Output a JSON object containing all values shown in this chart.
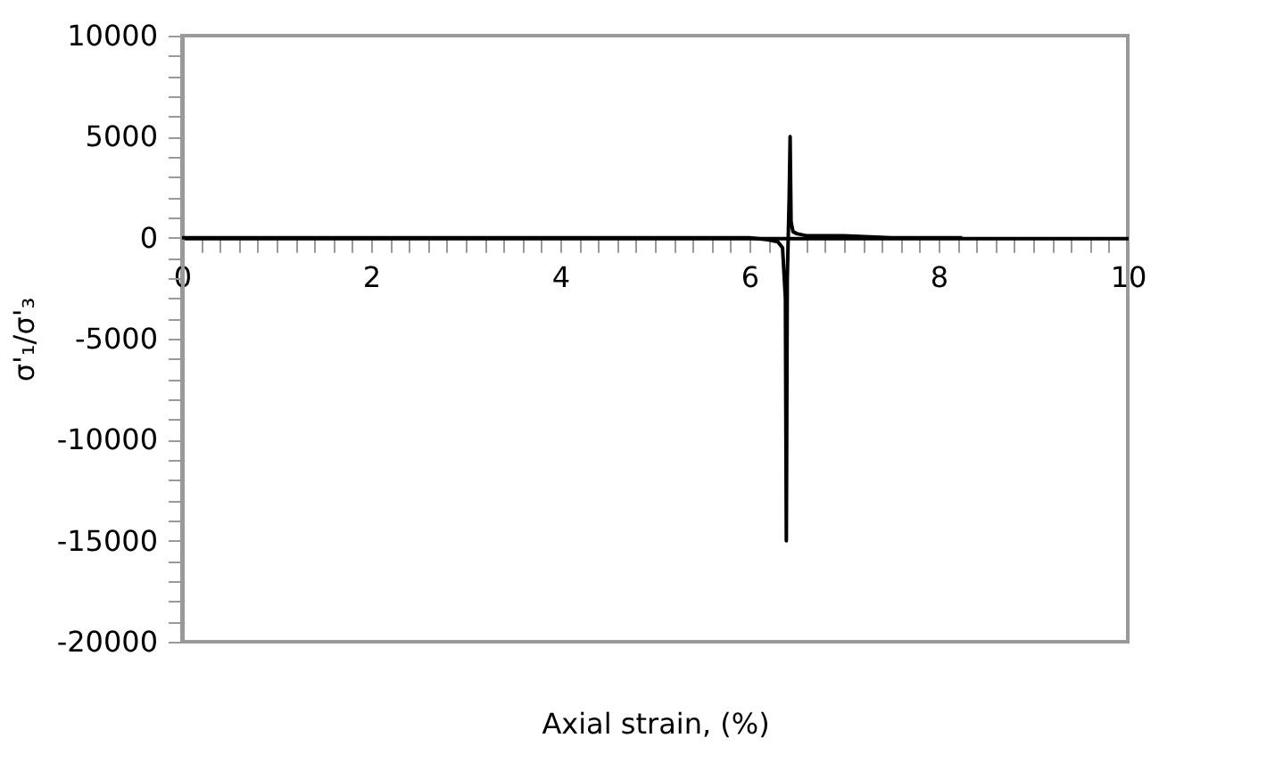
{
  "chart_data": {
    "type": "line",
    "xlabel": "Axial strain, (%)",
    "ylabel": "σ'₁/σ'₃",
    "x": [
      0,
      1,
      2,
      3,
      4,
      5,
      5.6,
      6.0,
      6.2,
      6.3,
      6.35,
      6.38,
      6.39,
      6.4,
      6.42,
      6.43,
      6.44,
      6.46,
      6.5,
      6.6,
      6.8,
      7.0,
      7.5,
      8.0,
      8.25
    ],
    "series": [
      {
        "color": "#000000",
        "values": [
          0,
          0,
          0,
          0,
          0,
          0,
          0,
          0,
          -100,
          -200,
          -500,
          -3000,
          -15000,
          -2000,
          2000,
          5000,
          800,
          300,
          200,
          100,
          100,
          100,
          0,
          0,
          0
        ]
      }
    ],
    "xlim": [
      0,
      10
    ],
    "ylim": [
      -20000,
      10000
    ],
    "xticks": [
      0,
      {
        "value": 0.2,
        "label": null
      },
      {
        "value": 0.4,
        "label": null
      },
      {
        "value": 0.6,
        "label": null
      },
      {
        "value": 0.8,
        "label": null
      },
      {
        "value": 1,
        "label": null
      },
      {
        "value": 1.2,
        "label": null
      },
      {
        "value": 1.4,
        "label": null
      },
      {
        "value": 1.6,
        "label": null
      },
      {
        "value": 1.8,
        "label": null
      },
      2,
      {
        "value": 2.2,
        "label": null
      },
      {
        "value": 2.4,
        "label": null
      },
      {
        "value": 2.6,
        "label": null
      },
      {
        "value": 2.8,
        "label": null
      },
      {
        "value": 3,
        "label": null
      },
      {
        "value": 3.2,
        "label": null
      },
      {
        "value": 3.4,
        "label": null
      },
      {
        "value": 3.6,
        "label": null
      },
      {
        "value": 3.8,
        "label": null
      },
      4,
      {
        "value": 4.2,
        "label": null
      },
      {
        "value": 4.4,
        "label": null
      },
      {
        "value": 4.6,
        "label": null
      },
      {
        "value": 4.8,
        "label": null
      },
      {
        "value": 5,
        "label": null
      },
      {
        "value": 5.2,
        "label": null
      },
      {
        "value": 5.4,
        "label": null
      },
      {
        "value": 5.6,
        "label": null
      },
      {
        "value": 5.8,
        "label": null
      },
      6,
      {
        "value": 6.2,
        "label": null
      },
      {
        "value": 6.4,
        "label": null
      },
      {
        "value": 6.6,
        "label": null
      },
      {
        "value": 6.8,
        "label": null
      },
      {
        "value": 7,
        "label": null
      },
      {
        "value": 7.2,
        "label": null
      },
      {
        "value": 7.4,
        "label": null
      },
      {
        "value": 7.6,
        "label": null
      },
      {
        "value": 7.8,
        "label": null
      },
      8,
      {
        "value": 8.2,
        "label": null
      },
      {
        "value": 8.4,
        "label": null
      },
      {
        "value": 8.6,
        "label": null
      },
      {
        "value": 8.8,
        "label": null
      },
      {
        "value": 9,
        "label": null
      },
      {
        "value": 9.2,
        "label": null
      },
      {
        "value": 9.4,
        "label": null
      },
      {
        "value": 9.6,
        "label": null
      },
      {
        "value": 9.8,
        "label": null
      },
      10
    ],
    "yticks": [
      -20000,
      {
        "value": -19000,
        "label": null
      },
      {
        "value": -18000,
        "label": null
      },
      {
        "value": -17000,
        "label": null
      },
      {
        "value": -16000,
        "label": null
      },
      -15000,
      {
        "value": -14000,
        "label": null
      },
      {
        "value": -13000,
        "label": null
      },
      {
        "value": -12000,
        "label": null
      },
      {
        "value": -11000,
        "label": null
      },
      -10000,
      {
        "value": -9000,
        "label": null
      },
      {
        "value": -8000,
        "label": null
      },
      {
        "value": -7000,
        "label": null
      },
      {
        "value": -6000,
        "label": null
      },
      -5000,
      {
        "value": -4000,
        "label": null
      },
      {
        "value": -3000,
        "label": null
      },
      {
        "value": -2000,
        "label": null
      },
      {
        "value": -1000,
        "label": null
      },
      0,
      {
        "value": 1000,
        "label": null
      },
      {
        "value": 2000,
        "label": null
      },
      {
        "value": 3000,
        "label": null
      },
      {
        "value": 4000,
        "label": null
      },
      5000,
      {
        "value": 6000,
        "label": null
      },
      {
        "value": 7000,
        "label": null
      },
      {
        "value": 8000,
        "label": null
      },
      {
        "value": 9000,
        "label": null
      },
      10000
    ],
    "grid": false,
    "marker": "none",
    "line_style": "solid"
  }
}
